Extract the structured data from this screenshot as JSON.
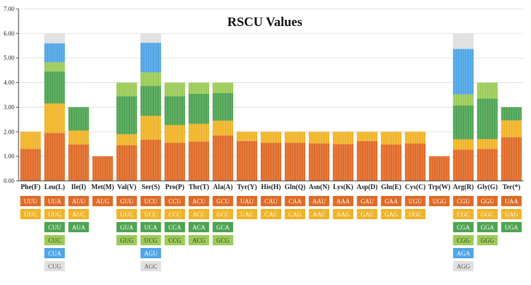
{
  "chart_data": {
    "type": "bar",
    "stacked": true,
    "title": "RSCU Values",
    "xlabel": "",
    "ylabel": "",
    "ylim": [
      0,
      7
    ],
    "ytick_labels": [
      "0.00",
      "1.00",
      "2.00",
      "3.00",
      "4.00",
      "5.00",
      "6.00",
      "7.00"
    ],
    "colors": [
      "#E06B28",
      "#F0B429",
      "#4FA453",
      "#9CCB57",
      "#4FA5E6",
      "#E0E0E0"
    ],
    "codon_text_colors": [
      "#ffffff",
      "#ffffff",
      "#ffffff",
      "#333333",
      "#ffffff",
      "#555555"
    ],
    "categories": [
      {
        "label": "Phe(F)",
        "codons": [
          "UUU",
          "UUC"
        ],
        "values": [
          1.3,
          0.7
        ]
      },
      {
        "label": "Leu(L)",
        "codons": [
          "UUA",
          "UUG",
          "CUU",
          "CUC",
          "CUA",
          "CUG"
        ],
        "values": [
          1.95,
          1.2,
          1.3,
          0.38,
          0.77,
          0.4
        ]
      },
      {
        "label": "Ile(I)",
        "codons": [
          "AUU",
          "AUC",
          "AUA"
        ],
        "values": [
          1.48,
          0.57,
          0.95
        ]
      },
      {
        "label": "Met(M)",
        "codons": [
          "AUG"
        ],
        "values": [
          1.0
        ]
      },
      {
        "label": "Val(V)",
        "codons": [
          "GUU",
          "GUC",
          "GUA",
          "GUG"
        ],
        "values": [
          1.45,
          0.45,
          1.55,
          0.55
        ]
      },
      {
        "label": "Ser(S)",
        "codons": [
          "UCU",
          "UCC",
          "UCA",
          "UCG",
          "AGU",
          "AGC"
        ],
        "values": [
          1.68,
          0.97,
          1.22,
          0.55,
          1.2,
          0.38
        ]
      },
      {
        "label": "Pro(P)",
        "codons": [
          "CCU",
          "CCC",
          "CCA",
          "CCG"
        ],
        "values": [
          1.55,
          0.72,
          1.18,
          0.55
        ]
      },
      {
        "label": "Thr(T)",
        "codons": [
          "ACU",
          "ACC",
          "ACA",
          "ACG"
        ],
        "values": [
          1.6,
          0.72,
          1.23,
          0.45
        ]
      },
      {
        "label": "Ala(A)",
        "codons": [
          "GCU",
          "GCC",
          "GCA",
          "GCG"
        ],
        "values": [
          1.85,
          0.6,
          1.12,
          0.43
        ]
      },
      {
        "label": "Tyr(Y)",
        "codons": [
          "UAU",
          "UAC"
        ],
        "values": [
          1.62,
          0.38
        ]
      },
      {
        "label": "His(H)",
        "codons": [
          "CAU",
          "CAC"
        ],
        "values": [
          1.55,
          0.45
        ]
      },
      {
        "label": "Gln(Q)",
        "codons": [
          "CAA",
          "CAG"
        ],
        "values": [
          1.55,
          0.45
        ]
      },
      {
        "label": "Asn(N)",
        "codons": [
          "AAU",
          "AAC"
        ],
        "values": [
          1.52,
          0.48
        ]
      },
      {
        "label": "Lys(K)",
        "codons": [
          "AAA",
          "AAG"
        ],
        "values": [
          1.5,
          0.5
        ]
      },
      {
        "label": "Asp(D)",
        "codons": [
          "GAU",
          "GAC"
        ],
        "values": [
          1.62,
          0.38
        ]
      },
      {
        "label": "Glu(E)",
        "codons": [
          "GAA",
          "GAG"
        ],
        "values": [
          1.48,
          0.52
        ]
      },
      {
        "label": "Cys(C)",
        "codons": [
          "UGU",
          "UGC"
        ],
        "values": [
          1.52,
          0.48
        ]
      },
      {
        "label": "Trp(W)",
        "codons": [
          "UGG"
        ],
        "values": [
          1.0
        ]
      },
      {
        "label": "Arg(R)",
        "codons": [
          "CGU",
          "CGC",
          "CGA",
          "CGG",
          "AGA",
          "AGG"
        ],
        "values": [
          1.27,
          0.42,
          1.38,
          0.45,
          1.85,
          0.63
        ]
      },
      {
        "label": "Gly(G)",
        "codons": [
          "GGU",
          "GGC",
          "GGA",
          "GGG"
        ],
        "values": [
          1.3,
          0.4,
          1.65,
          0.65
        ]
      },
      {
        "label": "Ter(*)",
        "codons": [
          "UAA",
          "UAG",
          "UGA"
        ],
        "values": [
          1.78,
          0.68,
          0.54
        ]
      }
    ]
  }
}
